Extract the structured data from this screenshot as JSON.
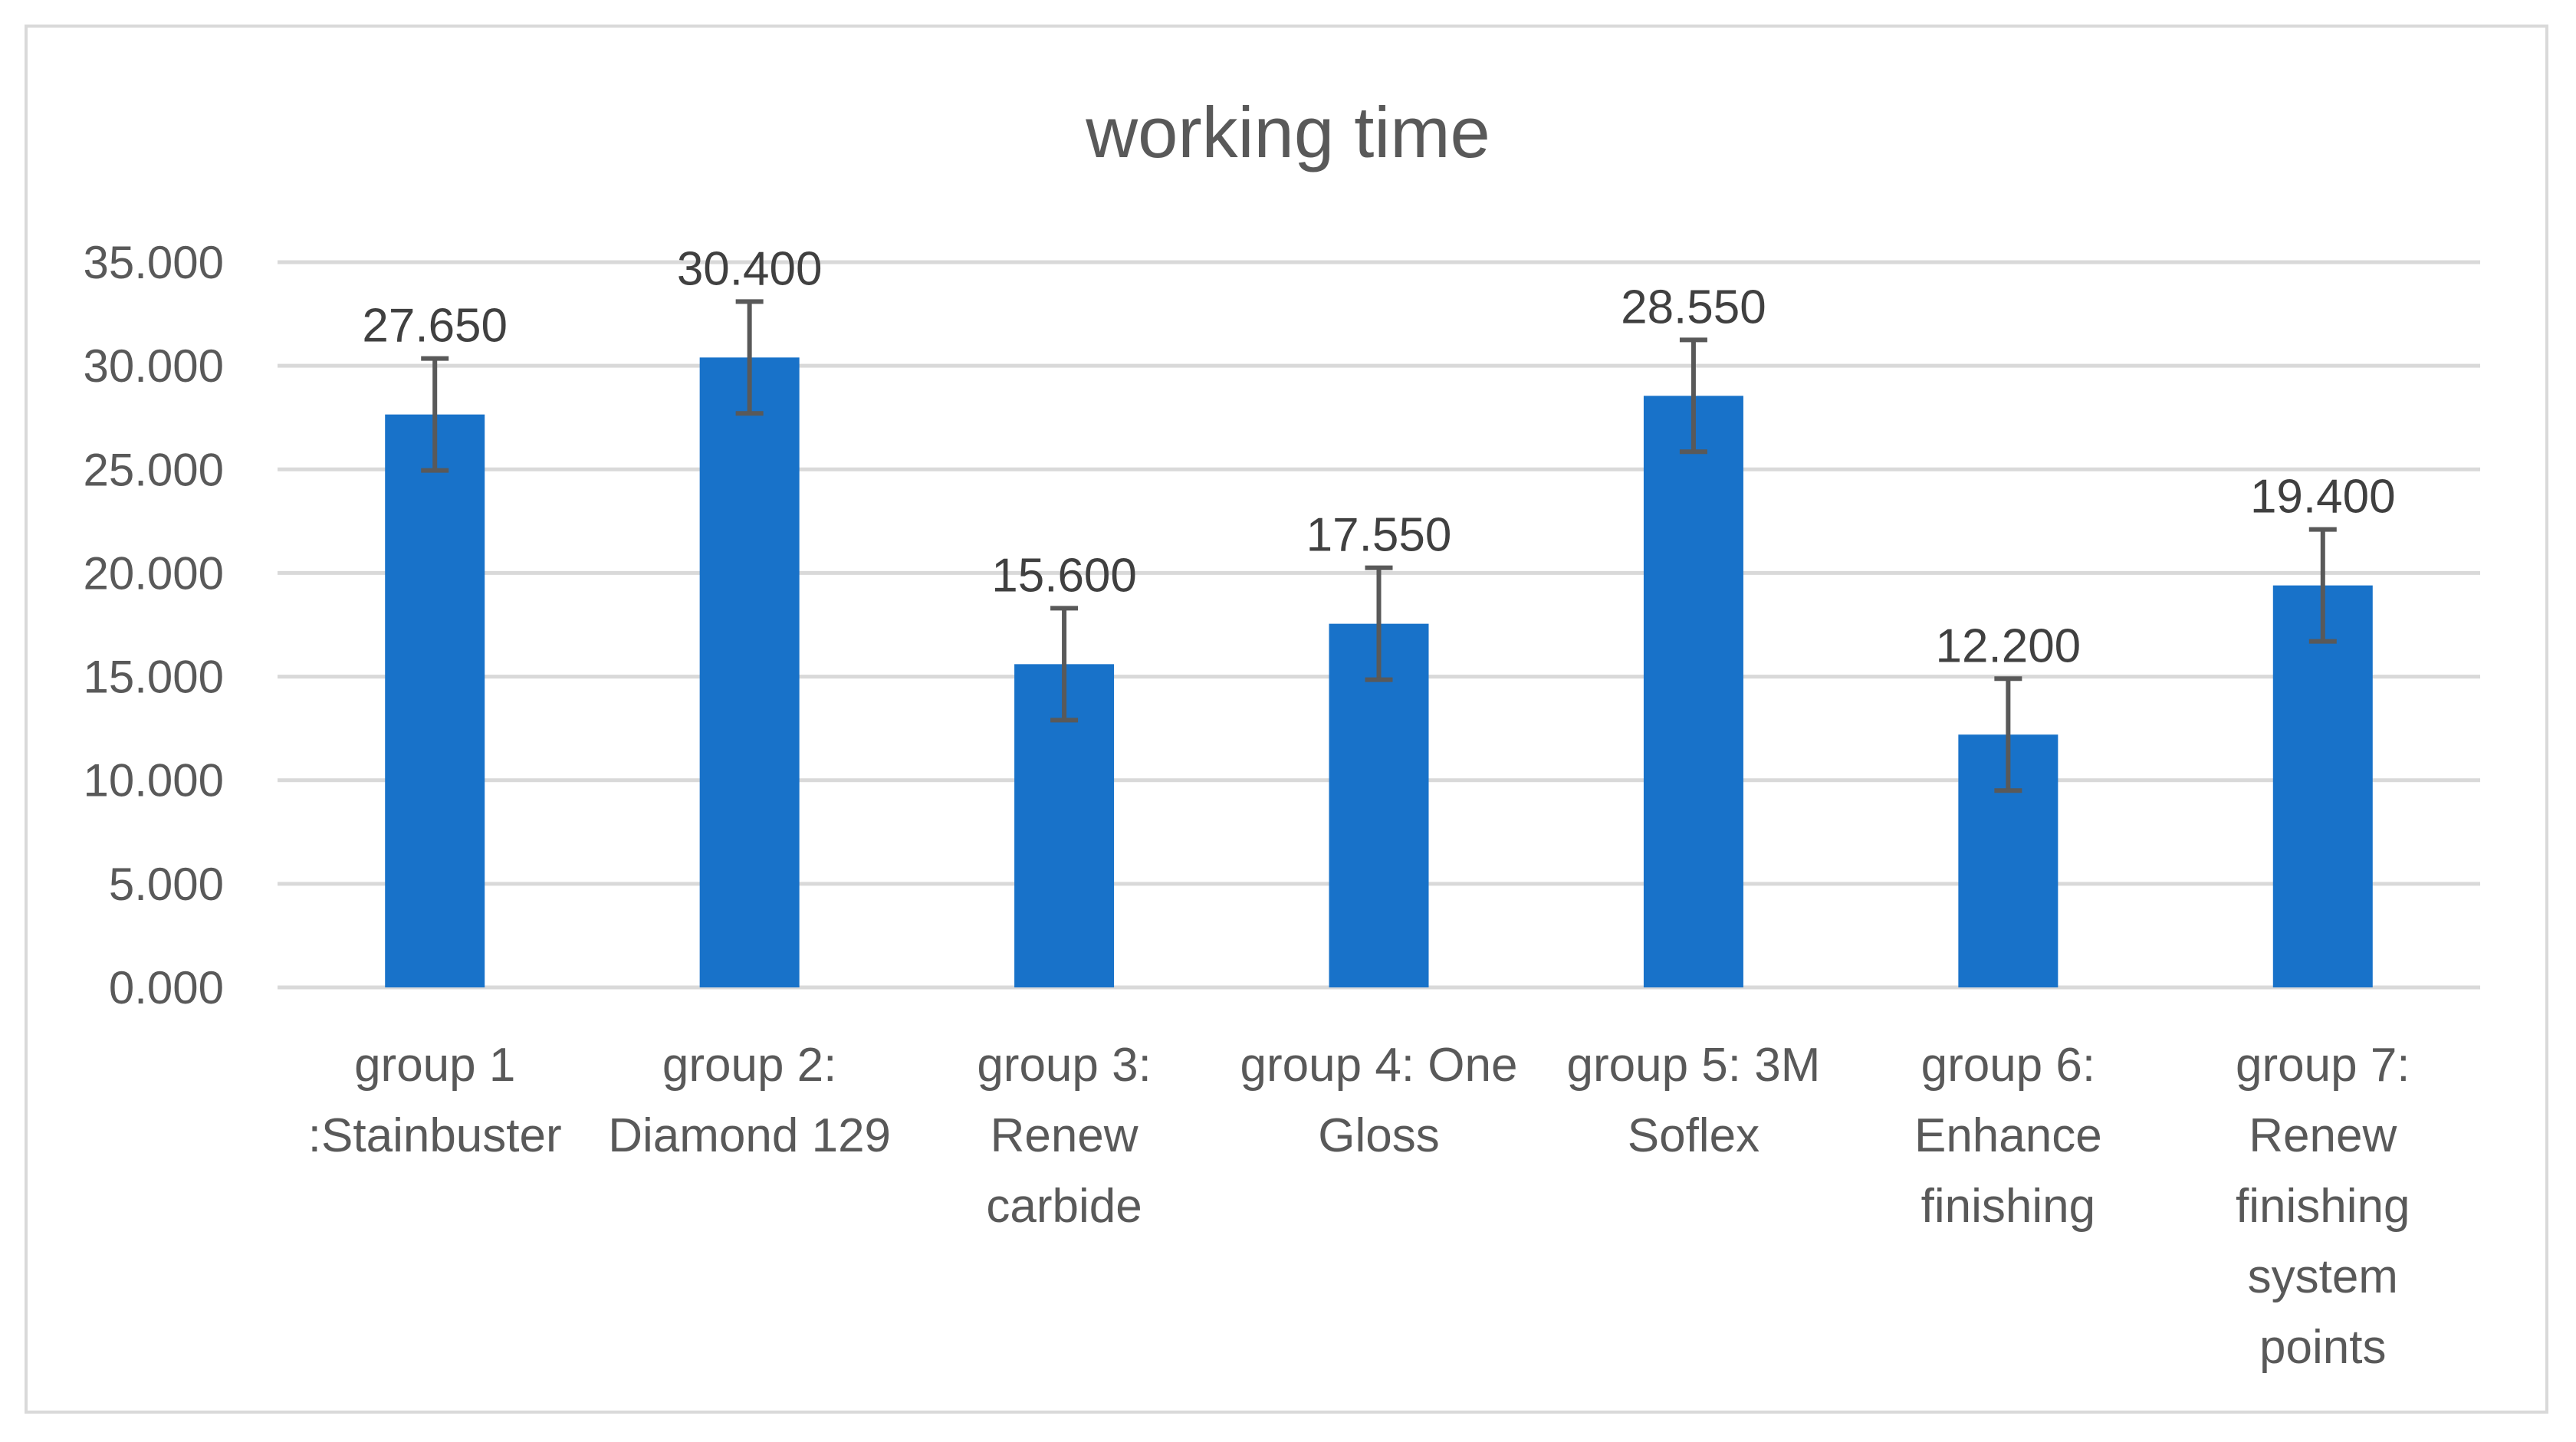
{
  "chart_data": {
    "type": "bar",
    "title": "working time",
    "xlabel": "",
    "ylabel": "",
    "categories": [
      "group 1 :Stainbuster",
      "group 2: Diamond 129",
      "group 3: Renew carbide",
      "group 4: One Gloss",
      "group 5: 3M Soflex",
      "group 6: Enhance finishing",
      "group 7: Renew finishing system points"
    ],
    "category_lines": [
      [
        "group 1",
        ":Stainbuster"
      ],
      [
        "group 2:",
        "Diamond 129"
      ],
      [
        "group 3:",
        "Renew",
        "carbide"
      ],
      [
        "group 4: One",
        "Gloss"
      ],
      [
        "group 5: 3M",
        "Soflex"
      ],
      [
        "group 6:",
        "Enhance",
        "finishing"
      ],
      [
        "group 7:",
        "Renew",
        "finishing",
        "system",
        "points"
      ]
    ],
    "values": [
      27.65,
      30.4,
      15.6,
      17.55,
      28.55,
      12.2,
      19.4
    ],
    "data_labels": [
      "27.650",
      "30.400",
      "15.600",
      "17.550",
      "28.550",
      "12.200",
      "19.400"
    ],
    "error": [
      2.7,
      2.7,
      2.7,
      2.7,
      2.7,
      2.7,
      2.7
    ],
    "ylim": [
      0,
      35
    ],
    "yticks": [
      0,
      5,
      10,
      15,
      20,
      25,
      30,
      35
    ],
    "ytick_labels": [
      "0.000",
      "5.000",
      "10.000",
      "15.000",
      "20.000",
      "25.000",
      "30.000",
      "35.000"
    ],
    "grid": true,
    "legend": "none",
    "bar_color": "#1872c9",
    "error_color": "#595959",
    "grid_color": "#d9d9d9"
  }
}
